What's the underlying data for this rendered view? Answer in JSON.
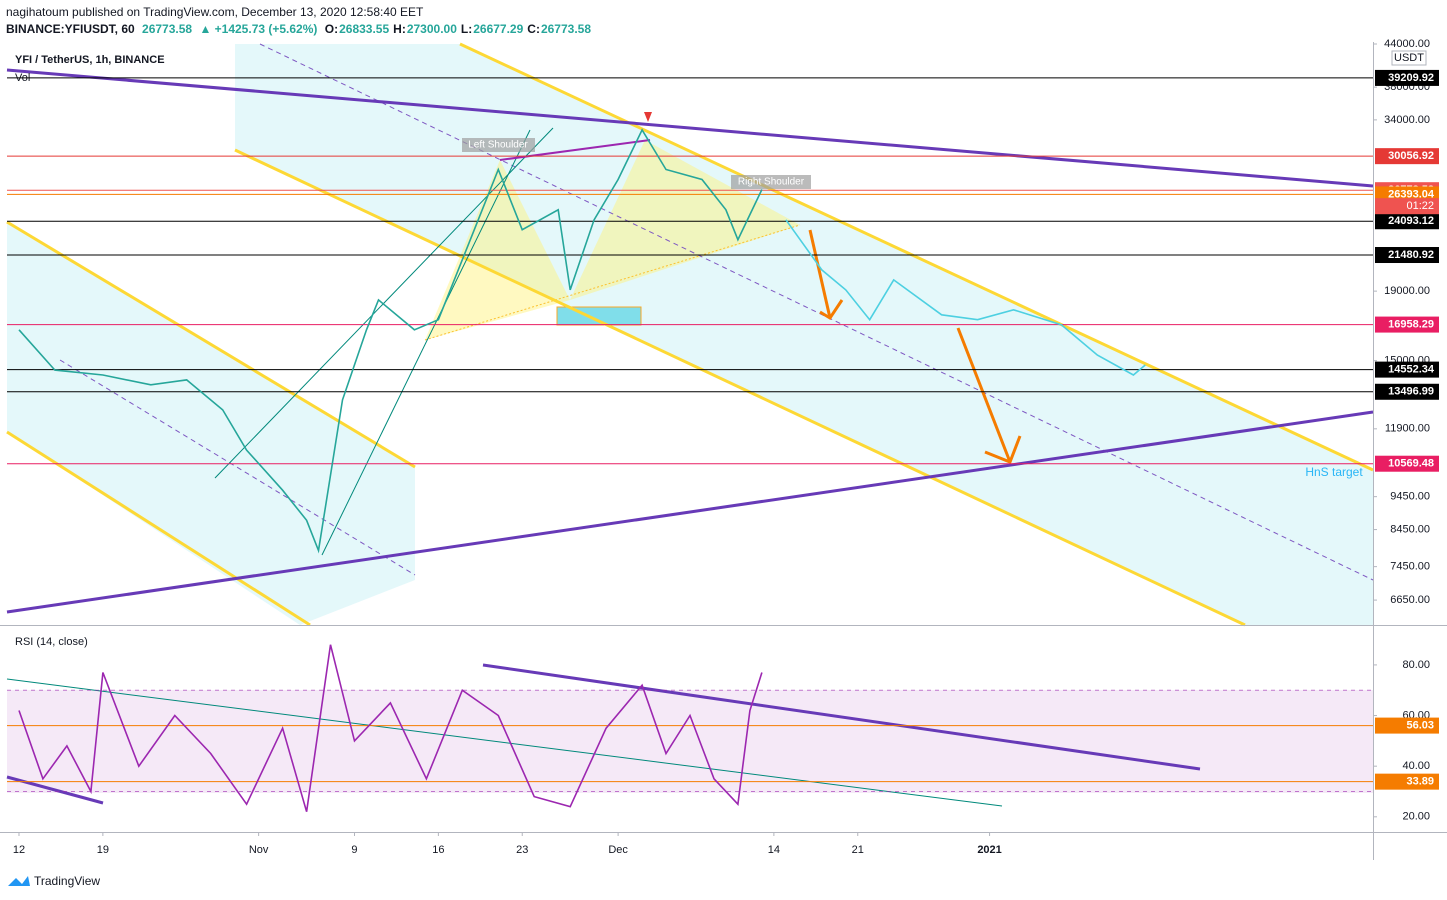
{
  "header": {
    "line1": "nagihatoum published on TradingView.com, December 13, 2020 12:58:40 EET",
    "symbol": "BINANCE:YFIUSDT, 60",
    "last": "26773.58",
    "change": "+1425.73 (+5.62%)",
    "ohlc": [
      {
        "key": "O:",
        "value": "26833.55"
      },
      {
        "key": "H:",
        "value": "27300.00"
      },
      {
        "key": "L:",
        "value": "26677.29"
      },
      {
        "key": "C:",
        "value": "26773.58"
      }
    ]
  },
  "chart_data": [
    {
      "type": "line",
      "title": "YFI / TetherUS, 1h, BINANCE",
      "volume_label": "Vol",
      "unit_label": "USDT",
      "log_scale": true,
      "annotations": [
        "Left Shoulder",
        "Right Shoulder",
        "HnS target"
      ],
      "countdown": "01:22",
      "xlim": [
        "2020-10-11",
        "2021-02-02"
      ],
      "ylim": [
        6110,
        44300
      ],
      "yticks": [
        {
          "value": 44000,
          "label": "44000.00"
        },
        {
          "value": 38000,
          "label": "38000.00"
        },
        {
          "value": 34000,
          "label": "34000.00"
        },
        {
          "value": 19000,
          "label": "19000.00"
        },
        {
          "value": 15000,
          "label": "15000.00"
        },
        {
          "value": 11900,
          "label": "11900.00"
        },
        {
          "value": 9450,
          "label": "9450.00"
        },
        {
          "value": 8450,
          "label": "8450.00"
        },
        {
          "value": 7450,
          "label": "7450.00"
        },
        {
          "value": 6650,
          "label": "6650.00"
        }
      ],
      "levels": [
        {
          "value": 39209.92,
          "color": "#000000"
        },
        {
          "value": 30056.92,
          "color": "#e53935"
        },
        {
          "value": 26773.58,
          "color": "#ef5350"
        },
        {
          "value": 26393.04,
          "color": "#f57c00"
        },
        {
          "value": 24093.12,
          "color": "#000000"
        },
        {
          "value": 21480.92,
          "color": "#000000"
        },
        {
          "value": 16958.29,
          "color": "#e91e63"
        },
        {
          "value": 14552.34,
          "color": "#000000"
        },
        {
          "value": 13496.99,
          "color": "#000000"
        },
        {
          "value": 10569.48,
          "color": "#e91e63"
        }
      ],
      "x": [
        "2020-10-12",
        "2020-10-15",
        "2020-10-19",
        "2020-10-23",
        "2020-10-26",
        "2020-10-29",
        "2020-10-31",
        "2020-11-03",
        "2020-11-05",
        "2020-11-06",
        "2020-11-08",
        "2020-11-10",
        "2020-11-11",
        "2020-11-14",
        "2020-11-16",
        "2020-11-19",
        "2020-11-21",
        "2020-11-23",
        "2020-11-26",
        "2020-11-27",
        "2020-11-29",
        "2020-12-01",
        "2020-12-03",
        "2020-12-05",
        "2020-12-08",
        "2020-12-10",
        "2020-12-11",
        "2020-12-13",
        "2020-12-15",
        "2020-12-18",
        "2020-12-20",
        "2020-12-22",
        "2020-12-24",
        "2020-12-28",
        "2020-12-31",
        "2021-01-03",
        "2021-01-07",
        "2021-01-10",
        "2021-01-13",
        "2021-01-14"
      ],
      "series": [
        {
          "color": "#26a69a",
          "values": [
            16660,
            14530,
            14290,
            13820,
            14050,
            12690,
            11070,
            9660,
            8720,
            7870,
            13130,
            16660,
            18440,
            16660,
            17240,
            23410,
            28720,
            23410,
            25050,
            19080,
            24210,
            27760,
            32860,
            28720,
            27760,
            25050,
            22630,
            26840,
            null,
            null,
            null,
            null,
            null,
            null,
            null,
            null,
            null,
            null,
            null,
            null
          ]
        },
        {
          "color": "#4dd0e1",
          "values": [
            null,
            null,
            null,
            null,
            null,
            null,
            null,
            null,
            null,
            null,
            null,
            null,
            null,
            null,
            null,
            null,
            null,
            null,
            null,
            null,
            null,
            null,
            null,
            null,
            null,
            null,
            null,
            null,
            24210,
            20420,
            19080,
            17240,
            19740,
            17530,
            17240,
            17830,
            16940,
            15290,
            14290,
            14780
          ]
        }
      ]
    },
    {
      "type": "line",
      "title": "RSI (14, close)",
      "xlim": [
        "2020-10-11",
        "2021-02-02"
      ],
      "xticks": [
        {
          "value": "2020-10-12",
          "label": "12"
        },
        {
          "value": "2020-10-19",
          "label": "19"
        },
        {
          "value": "2020-11-01",
          "label": "Nov"
        },
        {
          "value": "2020-11-09",
          "label": "9"
        },
        {
          "value": "2020-11-16",
          "label": "16"
        },
        {
          "value": "2020-11-23",
          "label": "23"
        },
        {
          "value": "2020-12-01",
          "label": "Dec"
        },
        {
          "value": "2020-12-14",
          "label": "14"
        },
        {
          "value": "2020-12-21",
          "label": "21"
        },
        {
          "value": "2021-01-01",
          "label": "2021"
        }
      ],
      "ylim": [
        14,
        93
      ],
      "yticks": [
        {
          "value": 80,
          "label": "80.00"
        },
        {
          "value": 60,
          "label": "60.00"
        },
        {
          "value": 40,
          "label": "40.00"
        },
        {
          "value": 20,
          "label": "20.00"
        }
      ],
      "bands": [
        30,
        70
      ],
      "levels": [
        {
          "value": 56.03,
          "color": "#f57c00"
        },
        {
          "value": 33.89,
          "color": "#f57c00"
        }
      ],
      "x": [
        "2020-10-12",
        "2020-10-14",
        "2020-10-16",
        "2020-10-18",
        "2020-10-19",
        "2020-10-22",
        "2020-10-25",
        "2020-10-28",
        "2020-10-31",
        "2020-11-03",
        "2020-11-05",
        "2020-11-07",
        "2020-11-09",
        "2020-11-12",
        "2020-11-15",
        "2020-11-18",
        "2020-11-21",
        "2020-11-24",
        "2020-11-27",
        "2020-11-30",
        "2020-12-03",
        "2020-12-05",
        "2020-12-07",
        "2020-12-09",
        "2020-12-11",
        "2020-12-12",
        "2020-12-13"
      ],
      "series": [
        {
          "color": "#9c27b0",
          "values": [
            62,
            35,
            48,
            30,
            77,
            40,
            60,
            45,
            25,
            55,
            22,
            88,
            50,
            65,
            35,
            70,
            60,
            28,
            24,
            55,
            72,
            45,
            60,
            35,
            25,
            62,
            77
          ]
        }
      ]
    }
  ],
  "footer": {
    "brand": "TradingView"
  }
}
